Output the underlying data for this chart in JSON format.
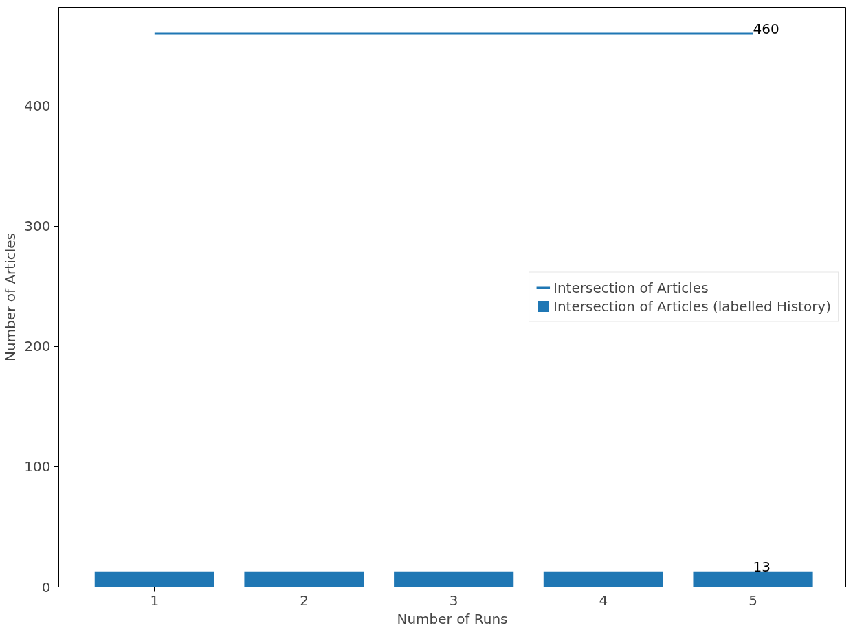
{
  "chart_data": {
    "type": "bar",
    "xlabel": "Number of Runs",
    "ylabel": "Number of Articles",
    "x": [
      1,
      2,
      3,
      4,
      5
    ],
    "series": [
      {
        "name": "Intersection of Articles",
        "type": "line",
        "color": "#1f77b4",
        "values": [
          460,
          460,
          460,
          460,
          460
        ],
        "value_labels": [
          null,
          null,
          null,
          null,
          "460"
        ]
      },
      {
        "name": "Intersection of Articles (labelled History)",
        "color": "#1f77b4",
        "values": [
          13,
          13,
          13,
          13,
          13
        ],
        "value_labels": [
          null,
          null,
          null,
          null,
          "13"
        ]
      }
    ],
    "xlim": [
      0.36,
      5.62
    ],
    "xticks": [
      1,
      2,
      3,
      4,
      5
    ],
    "ylim": [
      0,
      482
    ],
    "yticks": [
      0,
      100,
      200,
      300,
      400
    ],
    "grid": false,
    "legend": "right"
  }
}
